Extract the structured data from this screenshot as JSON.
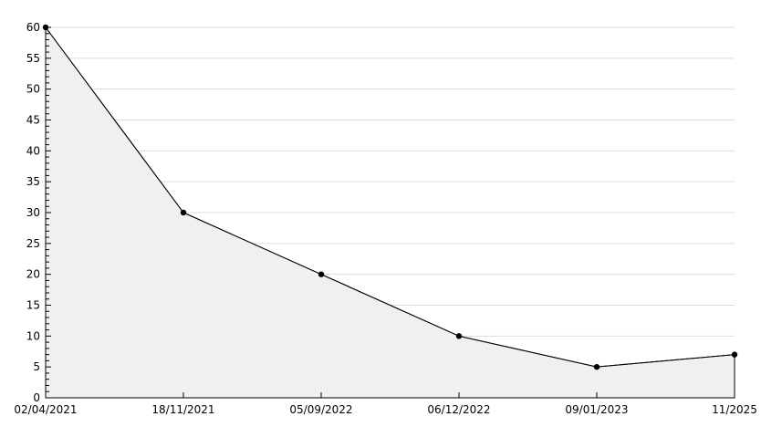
{
  "chart_data": {
    "type": "area",
    "title": "",
    "xlabel": "",
    "ylabel": "",
    "categories": [
      "02/04/2021",
      "18/11/2021",
      "05/09/2022",
      "06/12/2022",
      "09/01/2023",
      "11/2025"
    ],
    "values": [
      60,
      30,
      20,
      10,
      5,
      7
    ],
    "ylim": [
      0,
      60
    ],
    "yticks": [
      0,
      5,
      10,
      15,
      20,
      25,
      30,
      35,
      40,
      45,
      50,
      55,
      60
    ],
    "y_minor_step": 1,
    "grid": true,
    "legend": "none",
    "colors": {
      "background": "#ffffff",
      "grid": "#dddddd",
      "fill": "#f0f0f0",
      "line": "#000000",
      "marker": "#000000",
      "axis": "#000000",
      "tick_label": "#000000"
    }
  }
}
